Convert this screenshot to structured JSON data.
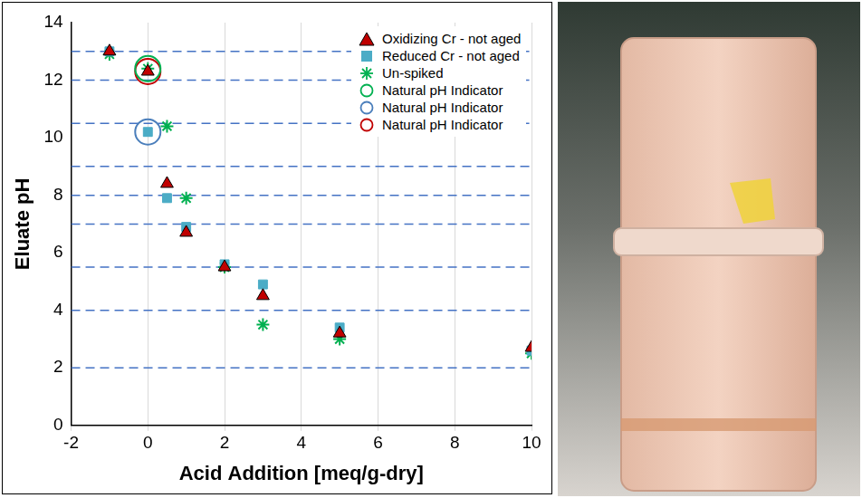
{
  "chart_data": {
    "type": "scatter",
    "xlabel": "Acid Addition [meq/g-dry]",
    "ylabel": "Eluate pH",
    "xlim": [
      -2,
      10
    ],
    "xticks": [
      -2,
      0,
      2,
      4,
      6,
      8,
      10
    ],
    "ylim": [
      0,
      14
    ],
    "yticks": [
      0,
      2,
      4,
      6,
      8,
      10,
      12,
      14
    ],
    "grid": "x",
    "legend": "upper right",
    "hlines": [
      2,
      4,
      5.5,
      7,
      8,
      9,
      10.5,
      12,
      13
    ],
    "series": [
      {
        "name": "Oxidizing Cr - not aged",
        "color": "#c00000",
        "marker": "triangle",
        "x": [
          -1,
          0,
          0.5,
          1,
          2,
          3,
          5,
          10
        ],
        "values": [
          13.0,
          12.3,
          8.4,
          6.7,
          5.5,
          4.5,
          3.2,
          2.7
        ]
      },
      {
        "name": "Reduced Cr - not aged",
        "color": "#4bacc6",
        "marker": "square",
        "x": [
          -1,
          0,
          0.5,
          1,
          2,
          3,
          5,
          10
        ],
        "values": [
          13.0,
          10.2,
          7.9,
          6.9,
          5.6,
          4.9,
          3.4,
          2.6
        ]
      },
      {
        "name": "Un-spiked",
        "color": "#00b050",
        "marker": "asterisk",
        "x": [
          -1,
          0,
          0.5,
          1,
          2,
          3,
          5,
          10
        ],
        "values": [
          12.9,
          12.4,
          10.4,
          7.9,
          5.5,
          3.5,
          3.0,
          2.5
        ]
      },
      {
        "name": "Natural pH Indicator",
        "color": "#00b050",
        "marker": "ring",
        "x": [
          0
        ],
        "values": [
          12.4
        ]
      },
      {
        "name": "Natural pH Indicator",
        "color": "#4a7ebb",
        "marker": "ring",
        "x": [
          0
        ],
        "values": [
          10.2
        ]
      },
      {
        "name": "Natural pH Indicator",
        "color": "#c00000",
        "marker": "ring",
        "x": [
          0
        ],
        "values": [
          12.3
        ]
      }
    ]
  }
}
